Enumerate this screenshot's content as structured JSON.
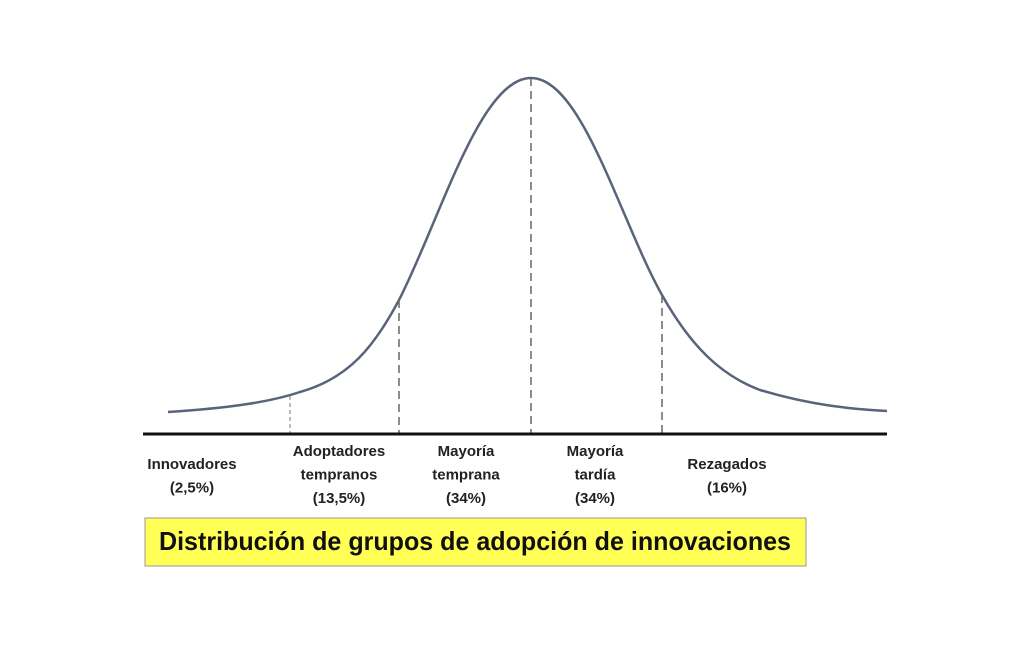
{
  "title": "Distribución de grupos de adopción de innovaciones",
  "segments": [
    {
      "lines": [
        "Innovadores"
      ],
      "share": "(2,5%)"
    },
    {
      "lines": [
        "Adoptadores",
        "tempranos"
      ],
      "share": "(13,5%)"
    },
    {
      "lines": [
        "Mayoría",
        "temprana"
      ],
      "share": "(34%)"
    },
    {
      "lines": [
        "Mayoría",
        "tardía"
      ],
      "share": "(34%)"
    },
    {
      "lines": [
        "Rezagados"
      ],
      "share": "(16%)"
    }
  ]
}
